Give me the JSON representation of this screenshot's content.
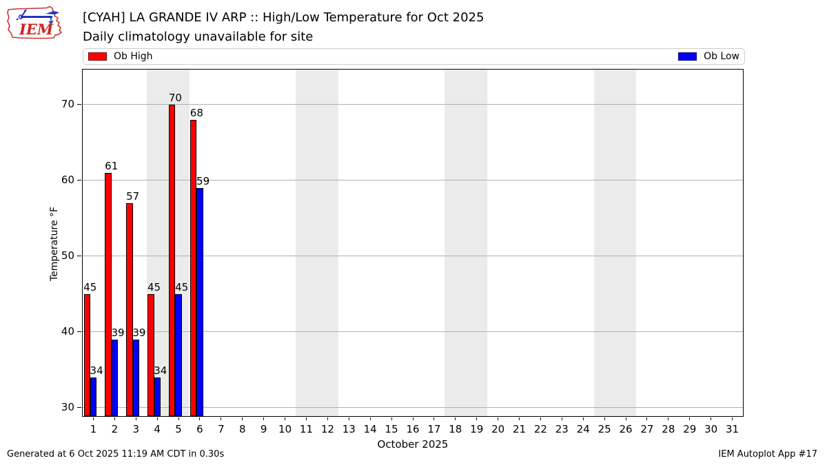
{
  "header": {
    "title": "[CYAH] LA GRANDE IV ARP :: High/Low Temperature for Oct 2025",
    "subtitle": "Daily climatology unavailable for site",
    "logo_text": "IEM"
  },
  "legend": {
    "high_label": "Ob High",
    "low_label": "Ob Low",
    "high_color": "#ff0000",
    "low_color": "#0000ff"
  },
  "footer": {
    "generated": "Generated at 6 Oct 2025 11:19 AM CDT in 0.30s",
    "app": "IEM Autoplot App #17"
  },
  "chart_data": {
    "type": "bar",
    "title": "[CYAH] LA GRANDE IV ARP :: High/Low Temperature for Oct 2025",
    "subtitle": "Daily climatology unavailable for site",
    "xlabel": "October 2025",
    "ylabel": "Temperature °F",
    "x": [
      1,
      2,
      3,
      4,
      5,
      6
    ],
    "series": [
      {
        "name": "Ob High",
        "color": "#ff0000",
        "values": [
          45,
          61,
          57,
          45,
          70,
          68
        ]
      },
      {
        "name": "Ob Low",
        "color": "#0000ff",
        "values": [
          34,
          39,
          39,
          34,
          45,
          59
        ]
      }
    ],
    "x_ticks": [
      1,
      2,
      3,
      4,
      5,
      6,
      7,
      8,
      9,
      10,
      11,
      12,
      13,
      14,
      15,
      16,
      17,
      18,
      19,
      20,
      21,
      22,
      23,
      24,
      25,
      26,
      27,
      28,
      29,
      30,
      31
    ],
    "y_ticks": [
      30,
      40,
      50,
      60,
      70
    ],
    "xlim": [
      0.5,
      31.5
    ],
    "ylim": [
      28.9,
      74.6
    ],
    "bar_width_days": 0.3,
    "weekend_bands": [
      [
        3.5,
        5.5
      ],
      [
        10.5,
        12.5
      ],
      [
        17.5,
        19.5
      ],
      [
        24.5,
        26.5
      ]
    ],
    "band_color": "#ebebeb",
    "grid_color": "#b0b0b0",
    "grid": "horizontal",
    "legend_position": "top full-width, high left / low right"
  }
}
